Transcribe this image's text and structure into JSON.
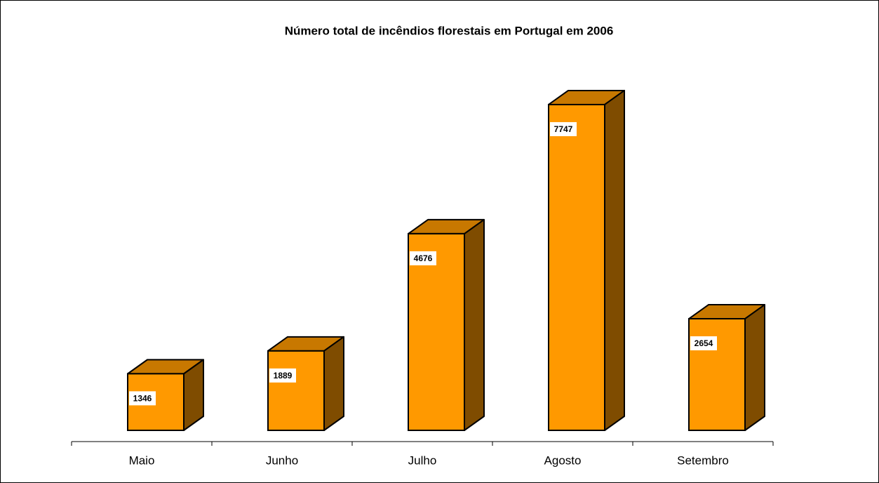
{
  "chart_data": {
    "type": "bar3d",
    "title": "Número total de incêndios florestais em Portugal em 2006",
    "categories": [
      "Maio",
      "Junho",
      "Julho",
      "Agosto",
      "Setembro"
    ],
    "values": [
      1346,
      1889,
      4676,
      7747,
      2654
    ],
    "color": "#ff9900"
  }
}
